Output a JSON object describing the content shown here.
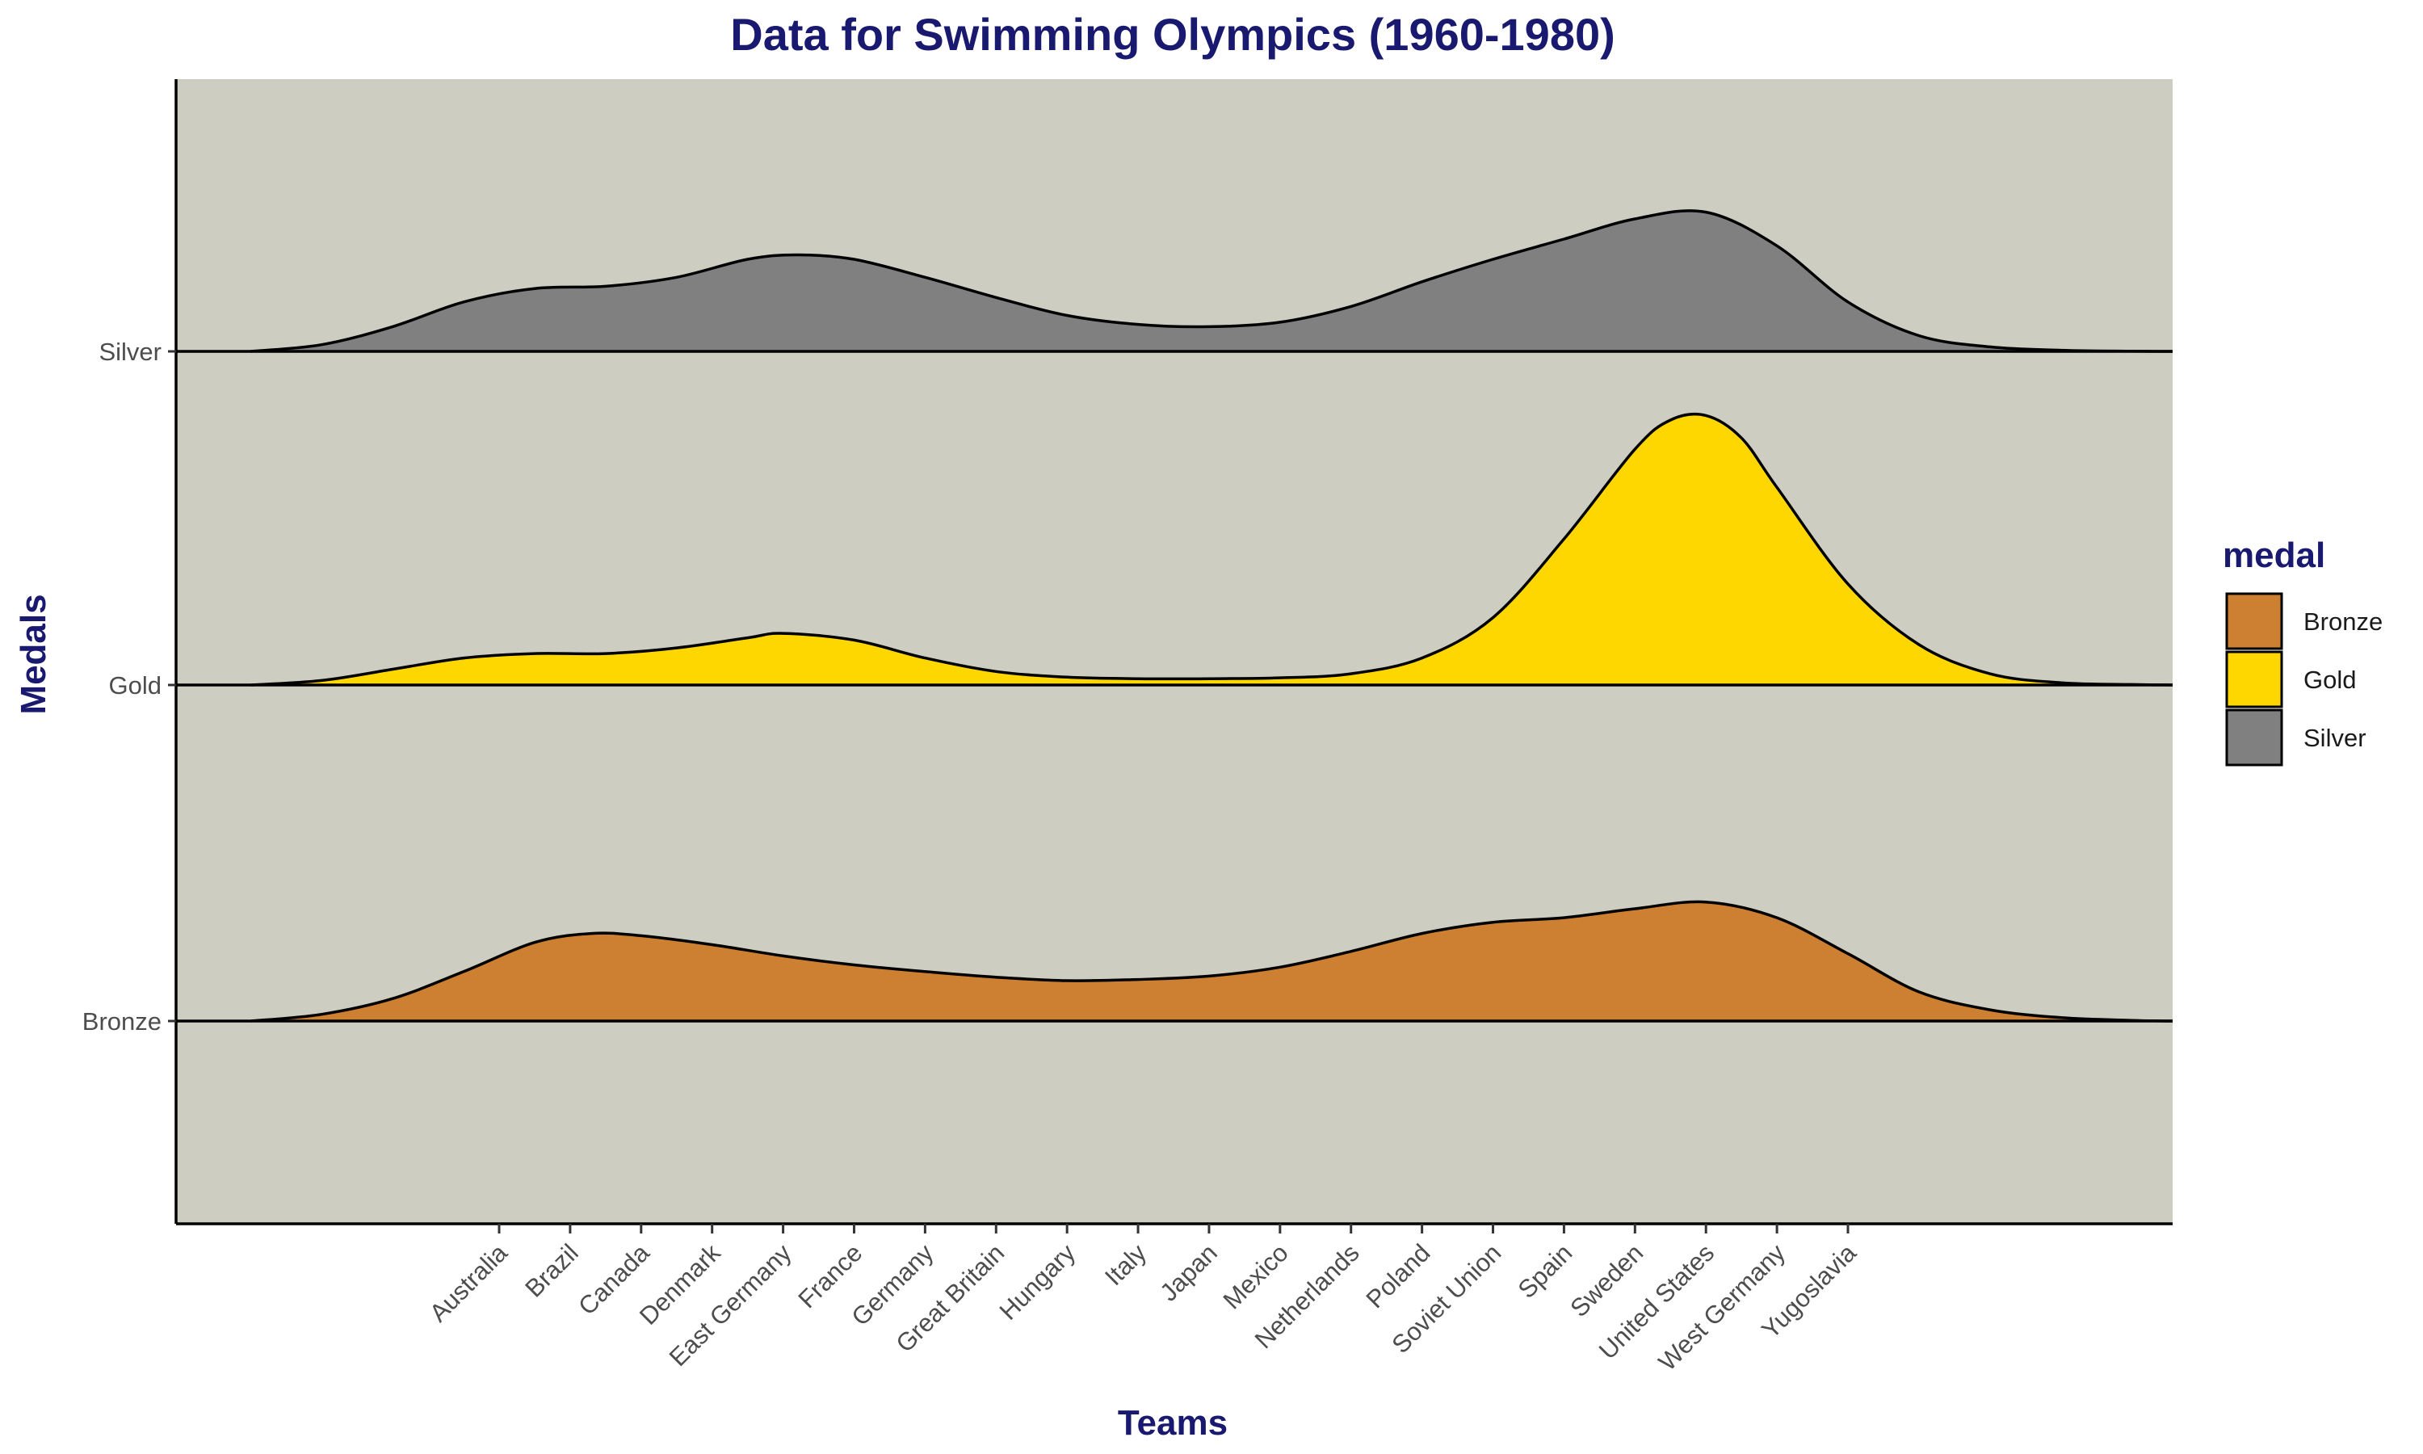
{
  "chart_data": {
    "type": "ridgeline",
    "title": "Data for Swimming Olympics (1960-1980)",
    "xlabel": "Teams",
    "ylabel": "Medals",
    "categories": [
      "Australia",
      "Brazil",
      "Canada",
      "Denmark",
      "East Germany",
      "France",
      "Germany",
      "Great Britain",
      "Hungary",
      "Italy",
      "Japan",
      "Mexico",
      "Netherlands",
      "Poland",
      "Soviet Union",
      "Spain",
      "Sweden",
      "United States",
      "West Germany",
      "Yugoslavia"
    ],
    "x_range": [
      -3.5,
      24.6
    ],
    "ridges": [
      "Bronze",
      "Gold",
      "Silver"
    ],
    "scale_max": 1.0,
    "series": [
      {
        "name": "Bronze",
        "color": "#CD7F32",
        "density": [
          {
            "x": -3.5,
            "y": 0.0
          },
          {
            "x": -2.5,
            "y": 0.03
          },
          {
            "x": -1.5,
            "y": 0.1
          },
          {
            "x": -0.5,
            "y": 0.22
          },
          {
            "x": 0.5,
            "y": 0.35
          },
          {
            "x": 1.3,
            "y": 0.39
          },
          {
            "x": 2.0,
            "y": 0.38
          },
          {
            "x": 3.0,
            "y": 0.34
          },
          {
            "x": 4.0,
            "y": 0.29
          },
          {
            "x": 5.0,
            "y": 0.25
          },
          {
            "x": 6.0,
            "y": 0.22
          },
          {
            "x": 7.0,
            "y": 0.195
          },
          {
            "x": 8.0,
            "y": 0.18
          },
          {
            "x": 9.0,
            "y": 0.185
          },
          {
            "x": 10.0,
            "y": 0.2
          },
          {
            "x": 11.0,
            "y": 0.24
          },
          {
            "x": 12.0,
            "y": 0.31
          },
          {
            "x": 13.0,
            "y": 0.39
          },
          {
            "x": 14.0,
            "y": 0.44
          },
          {
            "x": 15.0,
            "y": 0.46
          },
          {
            "x": 16.0,
            "y": 0.5
          },
          {
            "x": 17.0,
            "y": 0.53
          },
          {
            "x": 18.0,
            "y": 0.46
          },
          {
            "x": 19.0,
            "y": 0.3
          },
          {
            "x": 20.0,
            "y": 0.13
          },
          {
            "x": 21.0,
            "y": 0.05
          },
          {
            "x": 22.0,
            "y": 0.015
          },
          {
            "x": 23.0,
            "y": 0.003
          },
          {
            "x": 24.6,
            "y": 0.0
          }
        ]
      },
      {
        "name": "Gold",
        "color": "#FFD700",
        "density": [
          {
            "x": -3.5,
            "y": 0.0
          },
          {
            "x": -2.5,
            "y": 0.02
          },
          {
            "x": -1.5,
            "y": 0.07
          },
          {
            "x": -0.5,
            "y": 0.12
          },
          {
            "x": 0.5,
            "y": 0.14
          },
          {
            "x": 1.5,
            "y": 0.14
          },
          {
            "x": 2.5,
            "y": 0.165
          },
          {
            "x": 3.5,
            "y": 0.21
          },
          {
            "x": 4.0,
            "y": 0.23
          },
          {
            "x": 5.0,
            "y": 0.2
          },
          {
            "x": 6.0,
            "y": 0.12
          },
          {
            "x": 7.0,
            "y": 0.06
          },
          {
            "x": 8.0,
            "y": 0.035
          },
          {
            "x": 9.0,
            "y": 0.028
          },
          {
            "x": 10.0,
            "y": 0.028
          },
          {
            "x": 11.0,
            "y": 0.032
          },
          {
            "x": 12.0,
            "y": 0.05
          },
          {
            "x": 13.0,
            "y": 0.12
          },
          {
            "x": 14.0,
            "y": 0.3
          },
          {
            "x": 15.0,
            "y": 0.65
          },
          {
            "x": 16.0,
            "y": 1.05
          },
          {
            "x": 16.5,
            "y": 1.18
          },
          {
            "x": 17.0,
            "y": 1.2
          },
          {
            "x": 17.5,
            "y": 1.1
          },
          {
            "x": 18.0,
            "y": 0.88
          },
          {
            "x": 19.0,
            "y": 0.45
          },
          {
            "x": 20.0,
            "y": 0.18
          },
          {
            "x": 21.0,
            "y": 0.05
          },
          {
            "x": 22.0,
            "y": 0.01
          },
          {
            "x": 23.0,
            "y": 0.002
          },
          {
            "x": 24.6,
            "y": 0.0
          }
        ]
      },
      {
        "name": "Silver",
        "color": "#808080",
        "density": [
          {
            "x": -3.5,
            "y": 0.0
          },
          {
            "x": -2.5,
            "y": 0.03
          },
          {
            "x": -1.5,
            "y": 0.11
          },
          {
            "x": -0.5,
            "y": 0.22
          },
          {
            "x": 0.5,
            "y": 0.28
          },
          {
            "x": 1.5,
            "y": 0.29
          },
          {
            "x": 2.5,
            "y": 0.33
          },
          {
            "x": 3.5,
            "y": 0.41
          },
          {
            "x": 4.2,
            "y": 0.43
          },
          {
            "x": 5.0,
            "y": 0.41
          },
          {
            "x": 6.0,
            "y": 0.33
          },
          {
            "x": 7.0,
            "y": 0.24
          },
          {
            "x": 8.0,
            "y": 0.16
          },
          {
            "x": 9.0,
            "y": 0.12
          },
          {
            "x": 10.0,
            "y": 0.11
          },
          {
            "x": 11.0,
            "y": 0.13
          },
          {
            "x": 12.0,
            "y": 0.2
          },
          {
            "x": 13.0,
            "y": 0.31
          },
          {
            "x": 14.0,
            "y": 0.41
          },
          {
            "x": 15.0,
            "y": 0.5
          },
          {
            "x": 16.0,
            "y": 0.59
          },
          {
            "x": 17.0,
            "y": 0.62
          },
          {
            "x": 18.0,
            "y": 0.47
          },
          {
            "x": 19.0,
            "y": 0.22
          },
          {
            "x": 20.0,
            "y": 0.07
          },
          {
            "x": 21.0,
            "y": 0.02
          },
          {
            "x": 22.0,
            "y": 0.005
          },
          {
            "x": 23.0,
            "y": 0.001
          },
          {
            "x": 24.6,
            "y": 0.0
          }
        ]
      }
    ],
    "legend": {
      "title": "medal",
      "position": "right",
      "entries": [
        "Bronze",
        "Gold",
        "Silver"
      ]
    },
    "background_color": "#CDCDC1",
    "grid": false
  }
}
